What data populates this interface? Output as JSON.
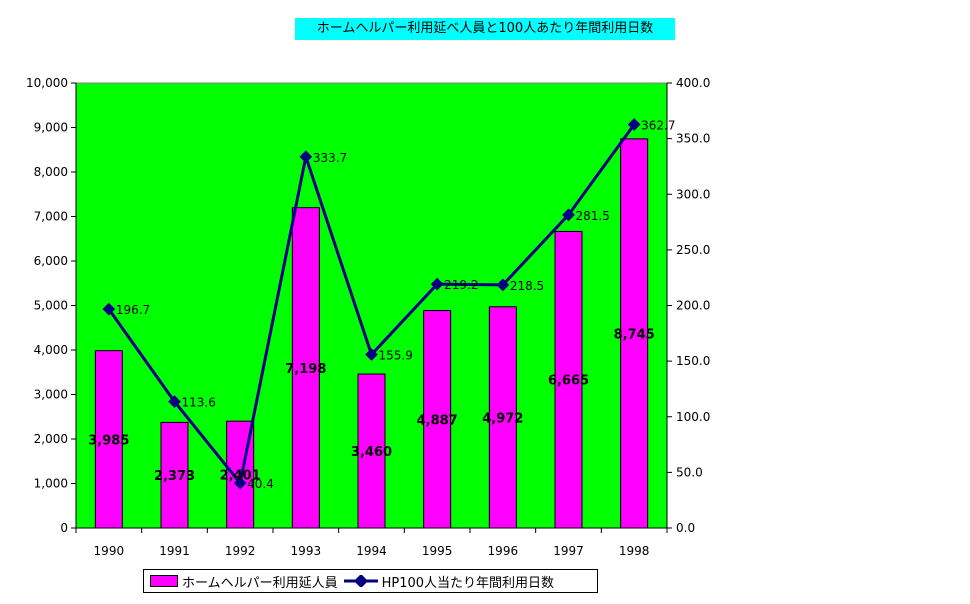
{
  "chart_data": {
    "type": "bar+line",
    "title": "ホームヘルパー利用延べ人員と100人あたり年間利用日数",
    "categories": [
      "1990",
      "1991",
      "1992",
      "1993",
      "1994",
      "1995",
      "1996",
      "1997",
      "1998"
    ],
    "series": [
      {
        "name": "ホームヘルパー利用延人員",
        "type": "bar",
        "axis": "left",
        "color": "#ff00ff",
        "values": [
          3985,
          2373,
          2401,
          7198,
          3460,
          4887,
          4972,
          6665,
          8745
        ],
        "labels": [
          "3,985",
          "2,373",
          "2,401",
          "7,198",
          "3,460",
          "4,887",
          "4,972",
          "6,665",
          "8,745"
        ]
      },
      {
        "name": "HP100人当たり年間利用日数",
        "type": "line",
        "axis": "right",
        "color": "#000080",
        "values": [
          196.7,
          113.6,
          40.4,
          333.7,
          155.9,
          219.2,
          218.5,
          281.5,
          362.7
        ],
        "labels": [
          "196.7",
          "113.6",
          "40.4",
          "333.7",
          "155.9",
          "219.2",
          "218.5",
          "281.5",
          "362.7"
        ]
      }
    ],
    "y_left": {
      "min": 0,
      "max": 10000,
      "ticks": [
        "0",
        "1,000",
        "2,000",
        "3,000",
        "4,000",
        "5,000",
        "6,000",
        "7,000",
        "8,000",
        "9,000",
        "10,000"
      ]
    },
    "y_right": {
      "min": 0,
      "max": 400,
      "ticks": [
        "0.0",
        "50.0",
        "100.0",
        "150.0",
        "200.0",
        "250.0",
        "300.0",
        "350.0",
        "400.0"
      ]
    },
    "plot_background": "#00ff00",
    "title_background": "#00ffff",
    "grid": false,
    "legend_position": "bottom"
  }
}
